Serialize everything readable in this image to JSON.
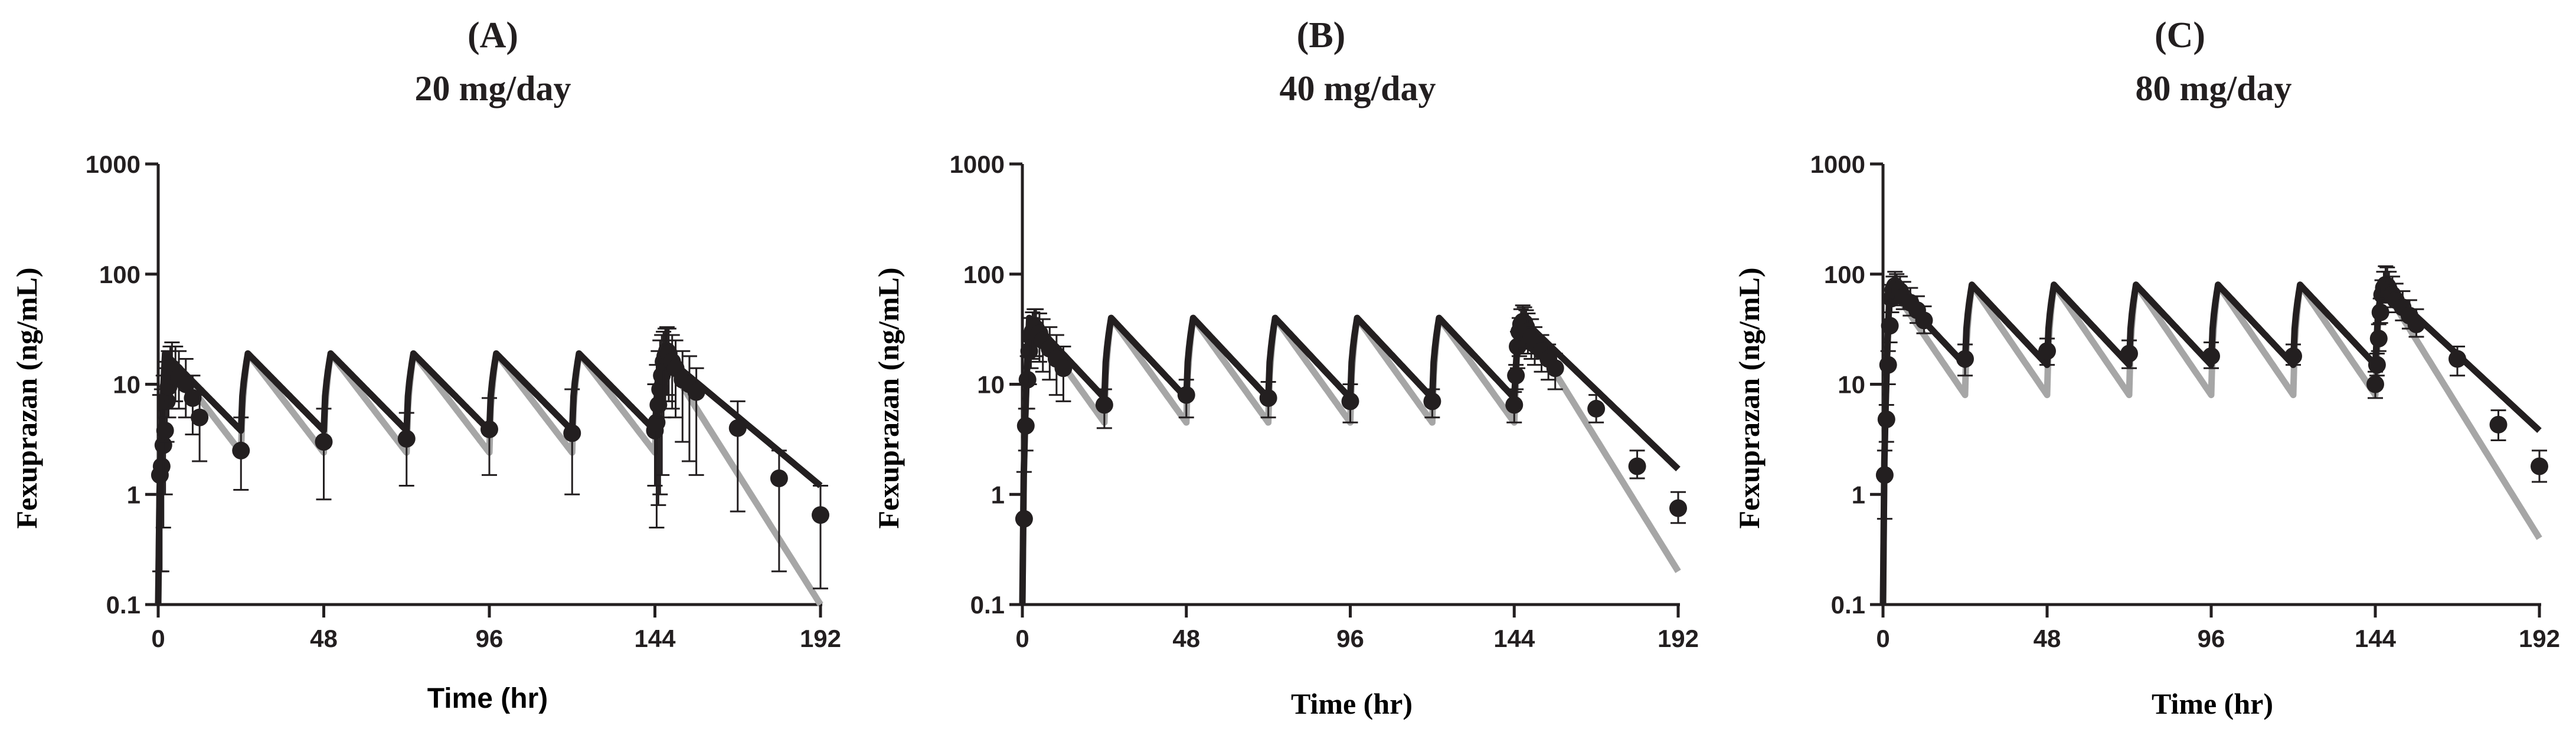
{
  "chart_data": [
    {
      "type": "line",
      "panel_label": "(A)",
      "title": "20 mg/day",
      "xlabel": "Time (hr)",
      "ylabel": "Fexuprazan (ng/mL)",
      "y_scale": "log",
      "xlim": [
        0,
        192
      ],
      "ylim": [
        0.1,
        1000
      ],
      "x_ticks": [
        0,
        48,
        96,
        144,
        192
      ],
      "y_ticks": [
        0.1,
        1,
        10,
        100,
        1000
      ],
      "y_tick_labels": [
        "0.1",
        "1",
        "10",
        "100",
        "1000"
      ],
      "grid": false,
      "dosing": {
        "interval_hr": 24,
        "n_doses": 7,
        "peak": 19,
        "trough": 3.8,
        "last_dose_hr": 144
      },
      "series": [
        {
          "name": "Simulated (black line)",
          "color": "#231f20",
          "terminal_end_value": 1.2
        },
        {
          "name": "Simulated (gray line)",
          "color": "#a6a6a6",
          "trough": 2.4,
          "terminal_end_value": 0.1
        },
        {
          "name": "Observed (mean ± SD)",
          "color": "#231f20",
          "x": [
            0.5,
            1,
            1.5,
            2,
            2.5,
            3,
            3.5,
            4,
            5,
            6,
            8,
            10,
            12,
            24,
            48,
            72,
            96,
            120,
            144,
            144.5,
            145,
            145.5,
            146,
            146.5,
            147,
            147.5,
            148,
            149,
            150,
            152,
            154,
            156,
            168,
            180,
            192
          ],
          "y": [
            1.5,
            1.8,
            2.8,
            3.8,
            7,
            9.5,
            12,
            14,
            13,
            11.5,
            10,
            7.5,
            5,
            2.5,
            3,
            3.2,
            3.9,
            3.6,
            3.8,
            4.5,
            6.5,
            9,
            12,
            16,
            18,
            20,
            19,
            16,
            14,
            11,
            10,
            8.5,
            4,
            1.4,
            0.65
          ],
          "sd_lo": [
            0.2,
            0.2,
            0.5,
            1,
            3,
            5,
            6,
            7,
            7,
            6,
            5,
            3.5,
            2,
            1.1,
            0.9,
            1.2,
            1.5,
            1,
            1.2,
            0.5,
            0.8,
            1,
            1.5,
            5,
            7,
            8,
            7,
            6,
            5,
            3,
            2,
            1.5,
            0.7,
            0.2,
            0.14
          ],
          "sd_hi": [
            8,
            9,
            12,
            14,
            16,
            20,
            22,
            24,
            22,
            20,
            17,
            12,
            8,
            5,
            6,
            5.5,
            7.5,
            9,
            10,
            15,
            20,
            25,
            28,
            30,
            32,
            33,
            32,
            28,
            25,
            20,
            18,
            14,
            7,
            2.5,
            1.2
          ]
        }
      ]
    },
    {
      "type": "line",
      "panel_label": "(B)",
      "title": "40 mg/day",
      "xlabel": "Time (hr)",
      "ylabel": "Fexuprazan (ng/mL)",
      "y_scale": "log",
      "xlim": [
        0,
        192
      ],
      "ylim": [
        0.1,
        1000
      ],
      "x_ticks": [
        0,
        48,
        96,
        144,
        192
      ],
      "y_ticks": [
        0.1,
        1,
        10,
        100,
        1000
      ],
      "y_tick_labels": [
        "0.1",
        "1",
        "10",
        "100",
        "1000"
      ],
      "grid": false,
      "dosing": {
        "interval_hr": 24,
        "n_doses": 7,
        "peak": 40,
        "trough": 7.5,
        "last_dose_hr": 144
      },
      "series": [
        {
          "name": "Simulated (black line)",
          "color": "#231f20",
          "terminal_end_value": 1.7
        },
        {
          "name": "Simulated (gray line)",
          "color": "#a6a6a6",
          "trough": 4.5,
          "terminal_end_value": 0.2
        },
        {
          "name": "Observed (mean ± SD)",
          "color": "#231f20",
          "x": [
            0.5,
            1,
            1.5,
            2,
            2.5,
            3,
            3.5,
            4,
            5,
            6,
            8,
            10,
            12,
            24,
            48,
            72,
            96,
            120,
            144,
            144.5,
            145,
            145.5,
            146,
            146.5,
            147,
            147.5,
            148,
            149,
            150,
            152,
            154,
            156,
            168,
            180,
            192
          ],
          "y": [
            0.6,
            4.2,
            11,
            20,
            27,
            30,
            33,
            32,
            29,
            25,
            21,
            17,
            14,
            6.5,
            8,
            7.5,
            7,
            7,
            6.5,
            12,
            22,
            30,
            35,
            37,
            36,
            33,
            30,
            27,
            23,
            20,
            17,
            14,
            6,
            1.8,
            0.75
          ],
          "sd_lo": [
            0.6,
            2.5,
            6,
            10,
            14,
            17,
            18,
            18,
            16,
            13,
            11,
            8,
            7,
            4,
            5,
            5,
            4.5,
            5,
            4.5,
            9,
            14,
            18,
            22,
            24,
            23,
            21,
            19,
            17,
            15,
            13,
            11,
            9,
            4.5,
            1.4,
            0.55
          ],
          "sd_hi": [
            1.6,
            6,
            18,
            30,
            40,
            45,
            48,
            48,
            44,
            39,
            33,
            28,
            22,
            9,
            11,
            10.5,
            10,
            9,
            8.5,
            15,
            30,
            40,
            48,
            52,
            50,
            47,
            44,
            39,
            33,
            28,
            23,
            19,
            8,
            2.5,
            1.05
          ]
        }
      ]
    },
    {
      "type": "line",
      "panel_label": "(C)",
      "title": "80 mg/day",
      "xlabel": "Time (hr)",
      "ylabel": "Fexuprazan (ng/mL)",
      "y_scale": "log",
      "xlim": [
        0,
        192
      ],
      "ylim": [
        0.1,
        1000
      ],
      "x_ticks": [
        0,
        48,
        96,
        144,
        192
      ],
      "y_ticks": [
        0.1,
        1,
        10,
        100,
        1000
      ],
      "y_tick_labels": [
        "0.1",
        "1",
        "10",
        "100",
        "1000"
      ],
      "grid": false,
      "dosing": {
        "interval_hr": 24,
        "n_doses": 7,
        "peak": 80,
        "trough": 15,
        "last_dose_hr": 144
      },
      "series": [
        {
          "name": "Simulated (black line)",
          "color": "#231f20",
          "terminal_end_value": 3.8
        },
        {
          "name": "Simulated (gray line)",
          "color": "#a6a6a6",
          "trough": 8,
          "terminal_end_value": 0.4
        },
        {
          "name": "Observed (mean ± SD)",
          "color": "#231f20",
          "x": [
            0.5,
            1,
            1.5,
            2,
            2.5,
            3,
            3.5,
            4,
            5,
            6,
            8,
            10,
            12,
            24,
            48,
            72,
            96,
            120,
            144,
            144.5,
            145,
            145.5,
            146,
            146.5,
            147,
            147.5,
            148,
            149,
            150,
            152,
            154,
            156,
            168,
            180,
            192
          ],
          "y": [
            1.5,
            4.8,
            15,
            34,
            60,
            72,
            78,
            75,
            70,
            62,
            55,
            47,
            38,
            17,
            20,
            19,
            18,
            18,
            10,
            15,
            26,
            45,
            65,
            75,
            80,
            78,
            72,
            65,
            58,
            50,
            42,
            35,
            17,
            4.3,
            1.8
          ],
          "sd_lo": [
            0.6,
            3,
            10,
            24,
            45,
            55,
            58,
            56,
            52,
            48,
            42,
            36,
            29,
            12,
            15,
            14,
            14,
            15,
            7.5,
            12,
            20,
            36,
            50,
            58,
            62,
            60,
            55,
            50,
            45,
            38,
            32,
            27,
            12,
            3.1,
            1.3
          ],
          "sd_hi": [
            2.5,
            6.5,
            20,
            45,
            80,
            95,
            105,
            100,
            95,
            85,
            75,
            63,
            51,
            23,
            26,
            25,
            24,
            23,
            13,
            19,
            35,
            60,
            88,
            105,
            118,
            115,
            105,
            95,
            82,
            70,
            58,
            48,
            22,
            5.8,
            2.5
          ]
        }
      ]
    }
  ]
}
